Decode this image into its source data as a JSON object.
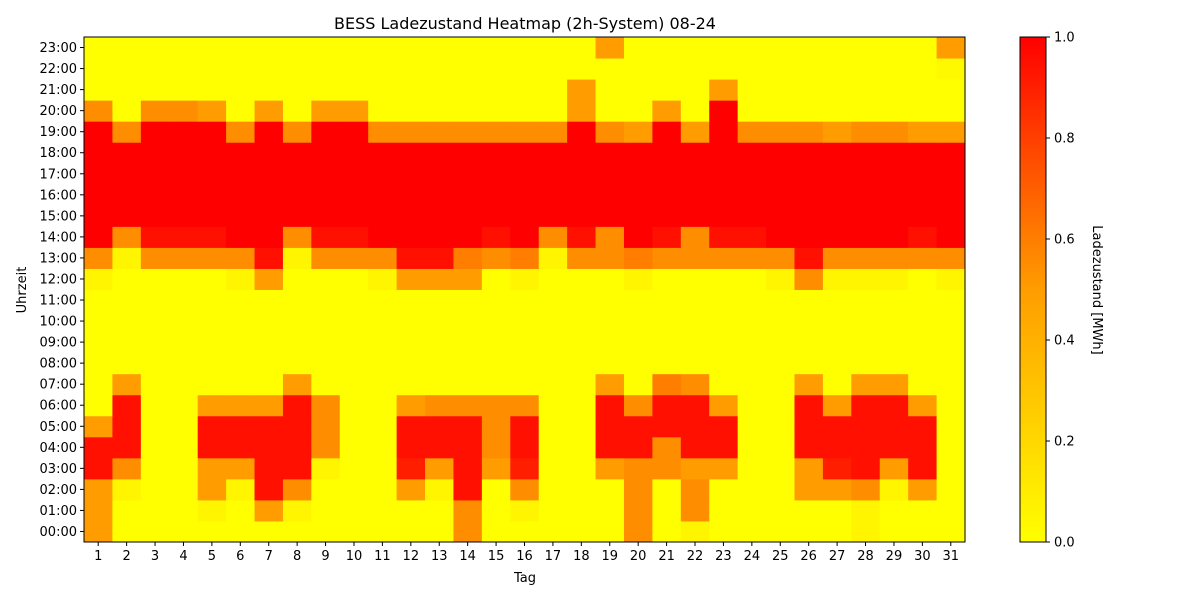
{
  "chart_data": {
    "type": "heatmap",
    "title": "BESS Ladezustand Heatmap (2h-System) 08-24",
    "xlabel": "Tag",
    "ylabel": "Uhrzeit",
    "colorbar_label": "Ladezustand [MWh]",
    "colorbar_ticks": [
      "0.0",
      "0.2",
      "0.4",
      "0.6",
      "0.8",
      "1.0"
    ],
    "value_range": [
      0,
      1
    ],
    "colormap": [
      "#ffff00",
      "#ff9d00",
      "#ff0000"
    ],
    "x": [
      "1",
      "2",
      "3",
      "4",
      "5",
      "6",
      "7",
      "8",
      "9",
      "10",
      "11",
      "12",
      "13",
      "14",
      "15",
      "16",
      "17",
      "18",
      "19",
      "20",
      "21",
      "22",
      "23",
      "24",
      "25",
      "26",
      "27",
      "28",
      "29",
      "30",
      "31"
    ],
    "y": [
      "00:00",
      "01:00",
      "02:00",
      "03:00",
      "04:00",
      "05:00",
      "06:00",
      "07:00",
      "08:00",
      "09:00",
      "10:00",
      "11:00",
      "12:00",
      "13:00",
      "14:00",
      "15:00",
      "16:00",
      "17:00",
      "18:00",
      "19:00",
      "20:00",
      "21:00",
      "22:00",
      "23:00"
    ],
    "values": [
      [
        0.5,
        0,
        0,
        0,
        0,
        0,
        0,
        0,
        0,
        0,
        0,
        0,
        0,
        0.55,
        0,
        0,
        0,
        0,
        0,
        0.55,
        0,
        0.05,
        0,
        0,
        0,
        0,
        0,
        0.05,
        0,
        0,
        0
      ],
      [
        0.5,
        0,
        0,
        0,
        0.05,
        0,
        0.5,
        0.05,
        0,
        0,
        0,
        0,
        0,
        0.55,
        0,
        0.05,
        0,
        0,
        0,
        0.55,
        0,
        0.55,
        0,
        0,
        0,
        0,
        0,
        0.05,
        0,
        0,
        0
      ],
      [
        0.5,
        0.05,
        0,
        0,
        0.5,
        0.05,
        0.95,
        0.55,
        0,
        0,
        0,
        0.5,
        0.05,
        0.95,
        0,
        0.55,
        0,
        0,
        0,
        0.55,
        0,
        0.55,
        0,
        0,
        0,
        0.5,
        0.5,
        0.55,
        0.05,
        0.5,
        0
      ],
      [
        0.95,
        0.55,
        0,
        0,
        0.5,
        0.5,
        0.95,
        0.95,
        0.05,
        0,
        0,
        0.9,
        0.5,
        0.95,
        0.5,
        0.9,
        0,
        0,
        0.5,
        0.55,
        0.55,
        0.5,
        0.5,
        0,
        0,
        0.5,
        0.9,
        0.95,
        0.5,
        0.95,
        0
      ],
      [
        0.95,
        0.95,
        0,
        0,
        0.95,
        0.95,
        0.95,
        0.95,
        0.55,
        0,
        0,
        0.95,
        0.95,
        0.95,
        0.55,
        0.95,
        0,
        0,
        0.95,
        0.95,
        0.55,
        0.95,
        0.95,
        0,
        0,
        0.95,
        0.95,
        0.95,
        0.95,
        0.95,
        0
      ],
      [
        0.5,
        0.95,
        0,
        0,
        0.95,
        0.95,
        0.95,
        0.95,
        0.55,
        0,
        0,
        0.95,
        0.95,
        0.95,
        0.55,
        0.95,
        0,
        0,
        0.95,
        0.95,
        0.95,
        0.95,
        0.95,
        0,
        0,
        0.95,
        0.95,
        0.95,
        0.95,
        0.95,
        0
      ],
      [
        0,
        0.95,
        0,
        0,
        0.5,
        0.5,
        0.5,
        0.95,
        0.55,
        0,
        0,
        0.5,
        0.55,
        0.55,
        0.55,
        0.55,
        0,
        0,
        0.95,
        0.55,
        0.95,
        0.95,
        0.5,
        0,
        0,
        0.95,
        0.5,
        0.95,
        0.95,
        0.5,
        0
      ],
      [
        0,
        0.5,
        0,
        0,
        0,
        0,
        0,
        0.5,
        0,
        0,
        0,
        0,
        0,
        0,
        0,
        0,
        0,
        0,
        0.5,
        0,
        0.6,
        0.55,
        0,
        0,
        0,
        0.5,
        0,
        0.5,
        0.5,
        0,
        0
      ],
      [
        0,
        0,
        0,
        0,
        0,
        0,
        0,
        0,
        0,
        0,
        0,
        0,
        0,
        0,
        0,
        0,
        0,
        0,
        0,
        0,
        0,
        0,
        0,
        0,
        0,
        0,
        0,
        0,
        0,
        0,
        0
      ],
      [
        0,
        0,
        0,
        0,
        0,
        0,
        0,
        0,
        0,
        0,
        0,
        0,
        0,
        0,
        0,
        0,
        0,
        0,
        0,
        0,
        0,
        0,
        0,
        0,
        0,
        0,
        0,
        0,
        0,
        0,
        0
      ],
      [
        0,
        0,
        0,
        0,
        0,
        0,
        0,
        0,
        0,
        0,
        0,
        0,
        0,
        0,
        0,
        0,
        0,
        0,
        0,
        0,
        0,
        0,
        0,
        0,
        0,
        0,
        0,
        0,
        0,
        0,
        0
      ],
      [
        0,
        0,
        0,
        0,
        0,
        0,
        0,
        0,
        0,
        0,
        0,
        0,
        0,
        0,
        0,
        0,
        0,
        0,
        0,
        0,
        0,
        0,
        0,
        0,
        0,
        0,
        0,
        0,
        0,
        0,
        0
      ],
      [
        0.05,
        0,
        0,
        0,
        0,
        0.05,
        0.5,
        0,
        0,
        0,
        0.05,
        0.5,
        0.5,
        0.5,
        0,
        0.05,
        0,
        0,
        0,
        0.05,
        0,
        0,
        0,
        0,
        0.05,
        0.55,
        0.05,
        0.05,
        0.05,
        0,
        0.05
      ],
      [
        0.55,
        0.05,
        0.55,
        0.55,
        0.55,
        0.55,
        0.95,
        0.05,
        0.55,
        0.55,
        0.55,
        0.95,
        0.95,
        0.6,
        0.55,
        0.6,
        0.05,
        0.55,
        0.55,
        0.6,
        0.55,
        0.55,
        0.55,
        0.55,
        0.55,
        0.95,
        0.55,
        0.55,
        0.55,
        0.55,
        0.55
      ],
      [
        1,
        0.55,
        0.95,
        0.95,
        0.95,
        1,
        1,
        0.55,
        0.95,
        0.95,
        1,
        1,
        1,
        1,
        0.95,
        1,
        0.55,
        0.95,
        0.55,
        1,
        0.95,
        0.55,
        0.95,
        0.95,
        1,
        1,
        1,
        1,
        1,
        0.95,
        1
      ],
      [
        1,
        1,
        1,
        1,
        1,
        1,
        1,
        1,
        1,
        1,
        1,
        1,
        1,
        1,
        1,
        1,
        1,
        1,
        1,
        1,
        1,
        1,
        1,
        1,
        1,
        1,
        1,
        1,
        1,
        1,
        1
      ],
      [
        1,
        1,
        1,
        1,
        1,
        1,
        1,
        1,
        1,
        1,
        1,
        1,
        1,
        1,
        1,
        1,
        1,
        1,
        1,
        1,
        1,
        1,
        1,
        1,
        1,
        1,
        1,
        1,
        1,
        1,
        1
      ],
      [
        1,
        1,
        1,
        1,
        1,
        1,
        1,
        1,
        1,
        1,
        1,
        1,
        1,
        1,
        1,
        1,
        1,
        1,
        1,
        1,
        1,
        1,
        1,
        1,
        1,
        1,
        1,
        1,
        1,
        1,
        1
      ],
      [
        1,
        1,
        1,
        1,
        1,
        1,
        1,
        1,
        1,
        1,
        1,
        1,
        1,
        1,
        1,
        1,
        1,
        1,
        1,
        1,
        1,
        1,
        1,
        1,
        1,
        1,
        1,
        1,
        1,
        1,
        1
      ],
      [
        1,
        0.55,
        1,
        1,
        1,
        0.55,
        1,
        0.55,
        1,
        1,
        0.55,
        0.55,
        0.55,
        0.55,
        0.55,
        0.55,
        0.55,
        1,
        0.55,
        0.5,
        1,
        0.5,
        1,
        0.55,
        0.55,
        0.55,
        0.5,
        0.55,
        0.55,
        0.5,
        0.5
      ],
      [
        0.55,
        0,
        0.55,
        0.55,
        0.5,
        0,
        0.5,
        0,
        0.5,
        0.5,
        0,
        0,
        0,
        0,
        0,
        0,
        0,
        0.5,
        0,
        0,
        0.5,
        0,
        1,
        0,
        0,
        0,
        0,
        0,
        0,
        0,
        0
      ],
      [
        0,
        0,
        0,
        0,
        0,
        0,
        0,
        0,
        0,
        0,
        0,
        0,
        0,
        0,
        0,
        0,
        0,
        0.5,
        0,
        0,
        0,
        0,
        0.5,
        0,
        0,
        0,
        0,
        0,
        0,
        0,
        0
      ],
      [
        0,
        0,
        0,
        0,
        0,
        0,
        0,
        0,
        0,
        0,
        0,
        0,
        0,
        0,
        0,
        0,
        0,
        0,
        0,
        0,
        0,
        0,
        0,
        0,
        0,
        0,
        0,
        0,
        0,
        0,
        0.03
      ],
      [
        0,
        0,
        0,
        0,
        0,
        0,
        0,
        0,
        0,
        0,
        0,
        0,
        0,
        0,
        0,
        0,
        0,
        0,
        0.5,
        0,
        0,
        0,
        0,
        0,
        0,
        0,
        0,
        0,
        0,
        0,
        0.5
      ]
    ]
  }
}
